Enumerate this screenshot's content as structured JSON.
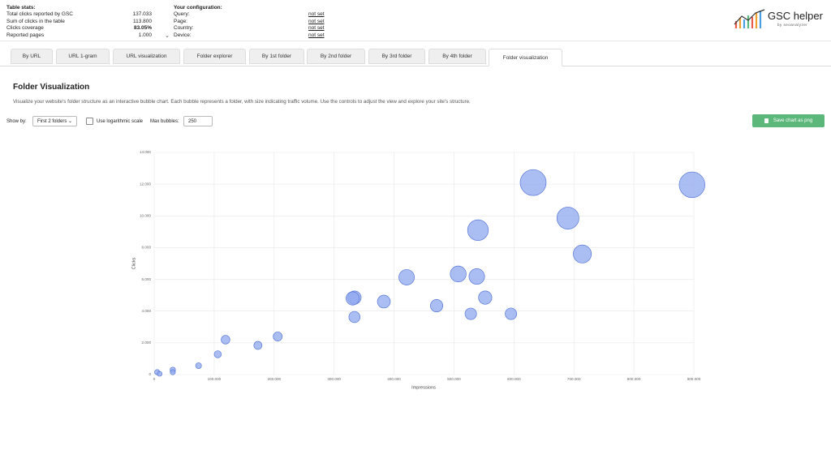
{
  "stats": {
    "title": "Table stats:",
    "rows": [
      {
        "label": "Total clicks reported by GSC",
        "value": "137.033"
      },
      {
        "label": "Sum of clicks in the table",
        "value": "113.800"
      },
      {
        "label": "Clicks coverage",
        "value": "83.05%"
      },
      {
        "label": "Reported pages",
        "value": "1.000"
      }
    ]
  },
  "config": {
    "title": "Your configuration:",
    "rows": [
      {
        "label": "Query:",
        "value": "not set"
      },
      {
        "label": "Page:",
        "value": "not set"
      },
      {
        "label": "Country:",
        "value": "not set"
      },
      {
        "label": "Device:",
        "value": "not set"
      }
    ]
  },
  "logo": {
    "name": "GSC helper",
    "by": "by seoanalyzer"
  },
  "tabs": [
    "By URL",
    "URL 1-gram",
    "URL visualization",
    "Folder explorer",
    "By 1st folder",
    "By 2nd folder",
    "By 3rd folder",
    "By 4th folder",
    "Folder visualization"
  ],
  "heading": "Folder Visualization",
  "description": "Visualize your website's folder structure as an interactive bubble chart. Each bubble represents a folder, with size indicating traffic volume. Use the controls to adjust the view and explore your site's structure.",
  "controls": {
    "show_by_label": "Show by:",
    "show_by_value": "First 2 folders",
    "log_label": "Use logarithmic scale",
    "max_label": "Max bubbles:",
    "max_value": "250",
    "save_button": "Save chart as png"
  },
  "chart_data": {
    "type": "bubble",
    "x_label": "Impressions",
    "y_label": "Clicks",
    "color": "#8fa8f0",
    "x": [
      632000,
      897000,
      690000,
      540000,
      714000,
      507000,
      538000,
      421000,
      552000,
      334000,
      331000,
      383000,
      471000,
      528000,
      595000,
      334000,
      206000,
      119000,
      173000,
      106000,
      74000,
      31000,
      31000,
      5000,
      9000
    ],
    "values": [
      12100,
      11960,
      9860,
      9100,
      7600,
      6340,
      6180,
      6130,
      4850,
      4850,
      4800,
      4600,
      4340,
      3830,
      3830,
      3630,
      2400,
      2200,
      1840,
      1280,
      560,
      300,
      150,
      150,
      50
    ],
    "xlim": [
      0,
      900000
    ],
    "ylim": [
      0,
      14000
    ],
    "xticks": [
      0,
      {
        "value": 100000,
        "label": "100.000"
      },
      {
        "value": 200000,
        "label": "200.000"
      },
      {
        "value": 300000,
        "label": "300.000"
      },
      {
        "value": 400000,
        "label": "400.000"
      },
      {
        "value": 500000,
        "label": "500.000"
      },
      {
        "value": 600000,
        "label": "600.000"
      },
      {
        "value": 700000,
        "label": "700.000"
      },
      {
        "value": 800000,
        "label": "800.000"
      },
      {
        "value": 900000,
        "label": "900.000"
      }
    ],
    "yticks": [
      0,
      {
        "value": 2000,
        "label": "2.000"
      },
      {
        "value": 4000,
        "label": "4.000"
      },
      {
        "value": 6000,
        "label": "6.000"
      },
      {
        "value": 8000,
        "label": "8.000"
      },
      {
        "value": 10000,
        "label": "10.000"
      },
      {
        "value": 12000,
        "label": "12.000"
      },
      {
        "value": 14000,
        "label": "14.000"
      }
    ],
    "grid": true
  }
}
